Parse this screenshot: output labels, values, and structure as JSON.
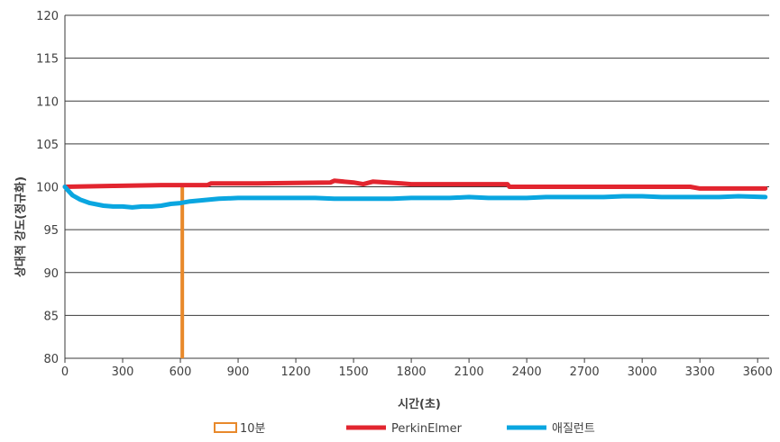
{
  "chart_data": {
    "type": "line",
    "title": "",
    "xlabel": "시간(초)",
    "ylabel": "상대적 강도(정규화)",
    "xlim": [
      0,
      3660
    ],
    "ylim": [
      80,
      120
    ],
    "x_ticks": [
      0,
      300,
      600,
      900,
      1200,
      1500,
      1800,
      2100,
      2400,
      2700,
      3000,
      3300,
      3600
    ],
    "y_ticks": [
      80,
      85,
      90,
      95,
      100,
      105,
      110,
      115,
      120
    ],
    "grid": "horizontal",
    "legend_position": "bottom",
    "marker": {
      "name": "10분",
      "x": 610,
      "y_from": 80,
      "y_to": 100,
      "color": "#E8892B"
    },
    "series": [
      {
        "name": "PerkinElmer",
        "color": "#E2252F",
        "x": [
          0,
          250,
          500,
          740,
          760,
          1000,
          1380,
          1400,
          1500,
          1550,
          1600,
          1750,
          1800,
          2000,
          2300,
          2310,
          2500,
          3000,
          3200,
          3250,
          3300,
          3400,
          3500,
          3640
        ],
        "y": [
          100.0,
          100.1,
          100.2,
          100.2,
          100.4,
          100.4,
          100.5,
          100.7,
          100.5,
          100.3,
          100.6,
          100.4,
          100.3,
          100.3,
          100.3,
          100.0,
          100.0,
          100.0,
          100.0,
          100.0,
          99.8,
          99.8,
          99.8,
          99.8
        ]
      },
      {
        "name": "애질런트",
        "color": "#0AA6E0",
        "x": [
          0,
          15,
          40,
          80,
          130,
          200,
          250,
          300,
          350,
          400,
          450,
          500,
          550,
          600,
          650,
          700,
          750,
          800,
          900,
          1000,
          1100,
          1200,
          1300,
          1400,
          1500,
          1600,
          1700,
          1800,
          1900,
          2000,
          2100,
          2200,
          2300,
          2400,
          2500,
          2600,
          2700,
          2800,
          2900,
          3000,
          3100,
          3200,
          3300,
          3400,
          3500,
          3640
        ],
        "y": [
          100.0,
          99.6,
          99.0,
          98.5,
          98.1,
          97.8,
          97.7,
          97.7,
          97.6,
          97.7,
          97.7,
          97.8,
          98.0,
          98.1,
          98.3,
          98.4,
          98.5,
          98.6,
          98.7,
          98.7,
          98.7,
          98.7,
          98.7,
          98.6,
          98.6,
          98.6,
          98.6,
          98.7,
          98.7,
          98.7,
          98.8,
          98.7,
          98.7,
          98.7,
          98.8,
          98.8,
          98.8,
          98.8,
          98.9,
          98.9,
          98.8,
          98.8,
          98.8,
          98.8,
          98.9,
          98.8
        ]
      }
    ]
  }
}
